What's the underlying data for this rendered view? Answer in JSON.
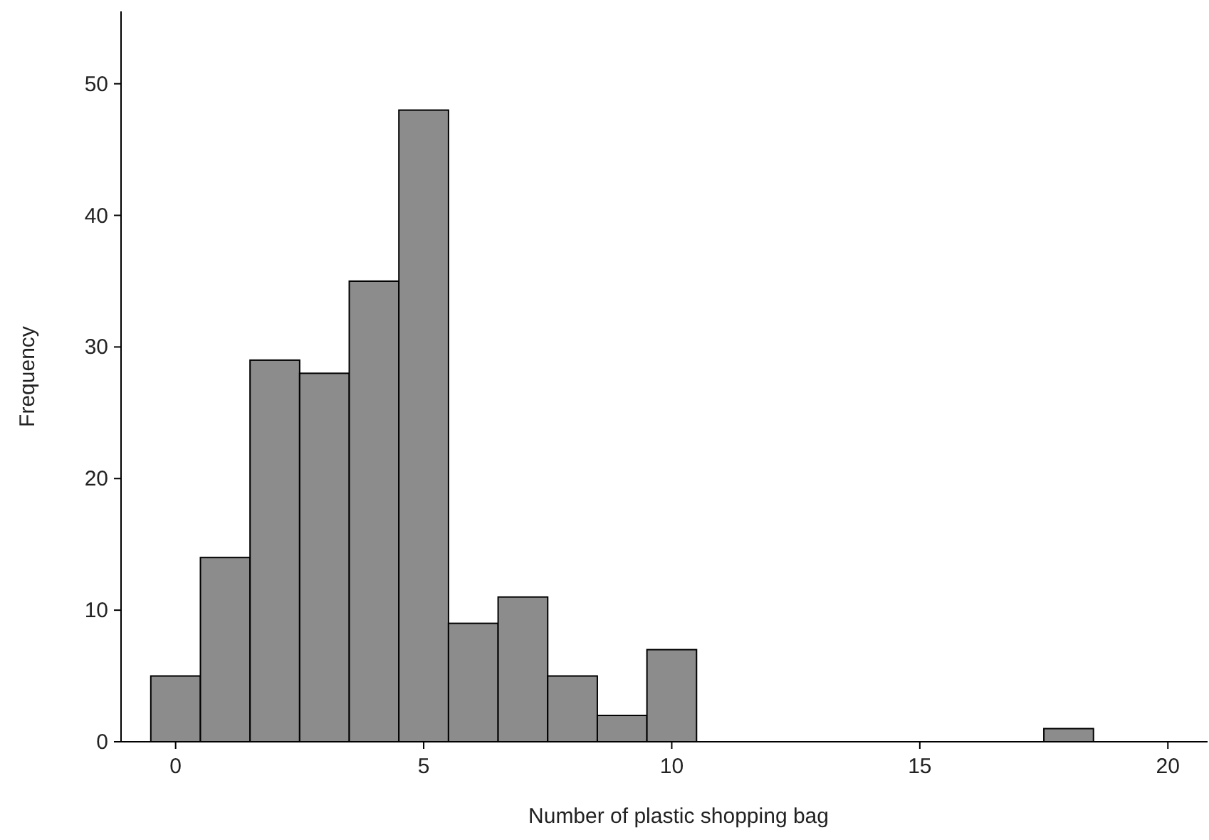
{
  "chart_data": {
    "type": "histogram",
    "xlabel": "Number of plastic shopping bag",
    "ylabel": "Frequency",
    "bins": [
      -0.5,
      0.5,
      1.5,
      2.5,
      3.5,
      4.5,
      5.5,
      6.5,
      7.5,
      8.5,
      9.5,
      10.5,
      11.5,
      12.5,
      13.5,
      14.5,
      15.5,
      16.5,
      17.5,
      18.5
    ],
    "values": [
      5,
      14,
      29,
      28,
      35,
      48,
      9,
      11,
      5,
      2,
      7,
      0,
      0,
      0,
      0,
      0,
      0,
      0,
      1
    ],
    "color": "#8c8c8c",
    "xlim": [
      -1.1,
      20.8
    ],
    "xticks": [
      0,
      5,
      10,
      15,
      20
    ],
    "ylim": [
      0,
      55.5
    ],
    "yticks": [
      0,
      10,
      20,
      30,
      40,
      50
    ],
    "grid": false
  }
}
